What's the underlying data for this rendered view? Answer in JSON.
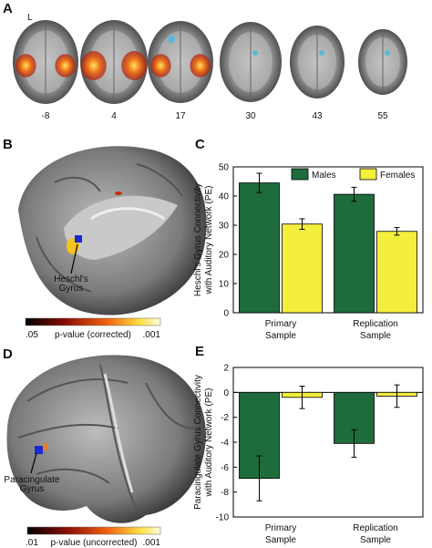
{
  "panel_a": {
    "letter": "A",
    "orientation": "L",
    "slices": [
      -8,
      4,
      17,
      30,
      43,
      55
    ]
  },
  "panel_b": {
    "letter": "B",
    "region": "Heschl's Gyrus",
    "scale_min": ".05",
    "scale_title": "p-value (corrected)",
    "scale_max": ".001"
  },
  "panel_d": {
    "letter": "D",
    "region": "Paracingulate Gyrus",
    "scale_min": ".01",
    "scale_title": "p-value (uncorrected)",
    "scale_max": ".001"
  },
  "chart_data": [
    {
      "type": "bar",
      "label": "C",
      "ylabel": [
        "Heschl's Gyrus Connectivity",
        "with Auditory Network (PE)"
      ],
      "categories": [
        "Primary Sample",
        "Replication Sample"
      ],
      "series": [
        {
          "name": "Males",
          "color": "#1e6b3c",
          "values": [
            44.5,
            40.6
          ],
          "errors": [
            3.3,
            2.4
          ]
        },
        {
          "name": "Females",
          "color": "#f4ee3c",
          "values": [
            30.4,
            27.9
          ],
          "errors": [
            1.8,
            1.3
          ]
        }
      ],
      "ylim": [
        0,
        50
      ],
      "yticks": [
        0,
        10,
        20,
        30,
        40,
        50
      ],
      "legend": "top"
    },
    {
      "type": "bar",
      "label": "E",
      "ylabel": [
        "Paracingulate Gyrus Connectivity",
        "with Auditory Network (PE)"
      ],
      "categories": [
        "Primary Sample",
        "Replication Sample"
      ],
      "series": [
        {
          "color": "#1e6b3c",
          "values": [
            -6.9,
            -4.1
          ],
          "errors": [
            1.8,
            1.1
          ]
        },
        {
          "color": "#f4ee3c",
          "values": [
            -0.4,
            -0.3
          ],
          "errors": [
            0.9,
            0.9
          ]
        }
      ],
      "ylim": [
        -10,
        2
      ],
      "yticks": [
        -10,
        -8,
        -6,
        -4,
        -2,
        0,
        2
      ]
    }
  ]
}
